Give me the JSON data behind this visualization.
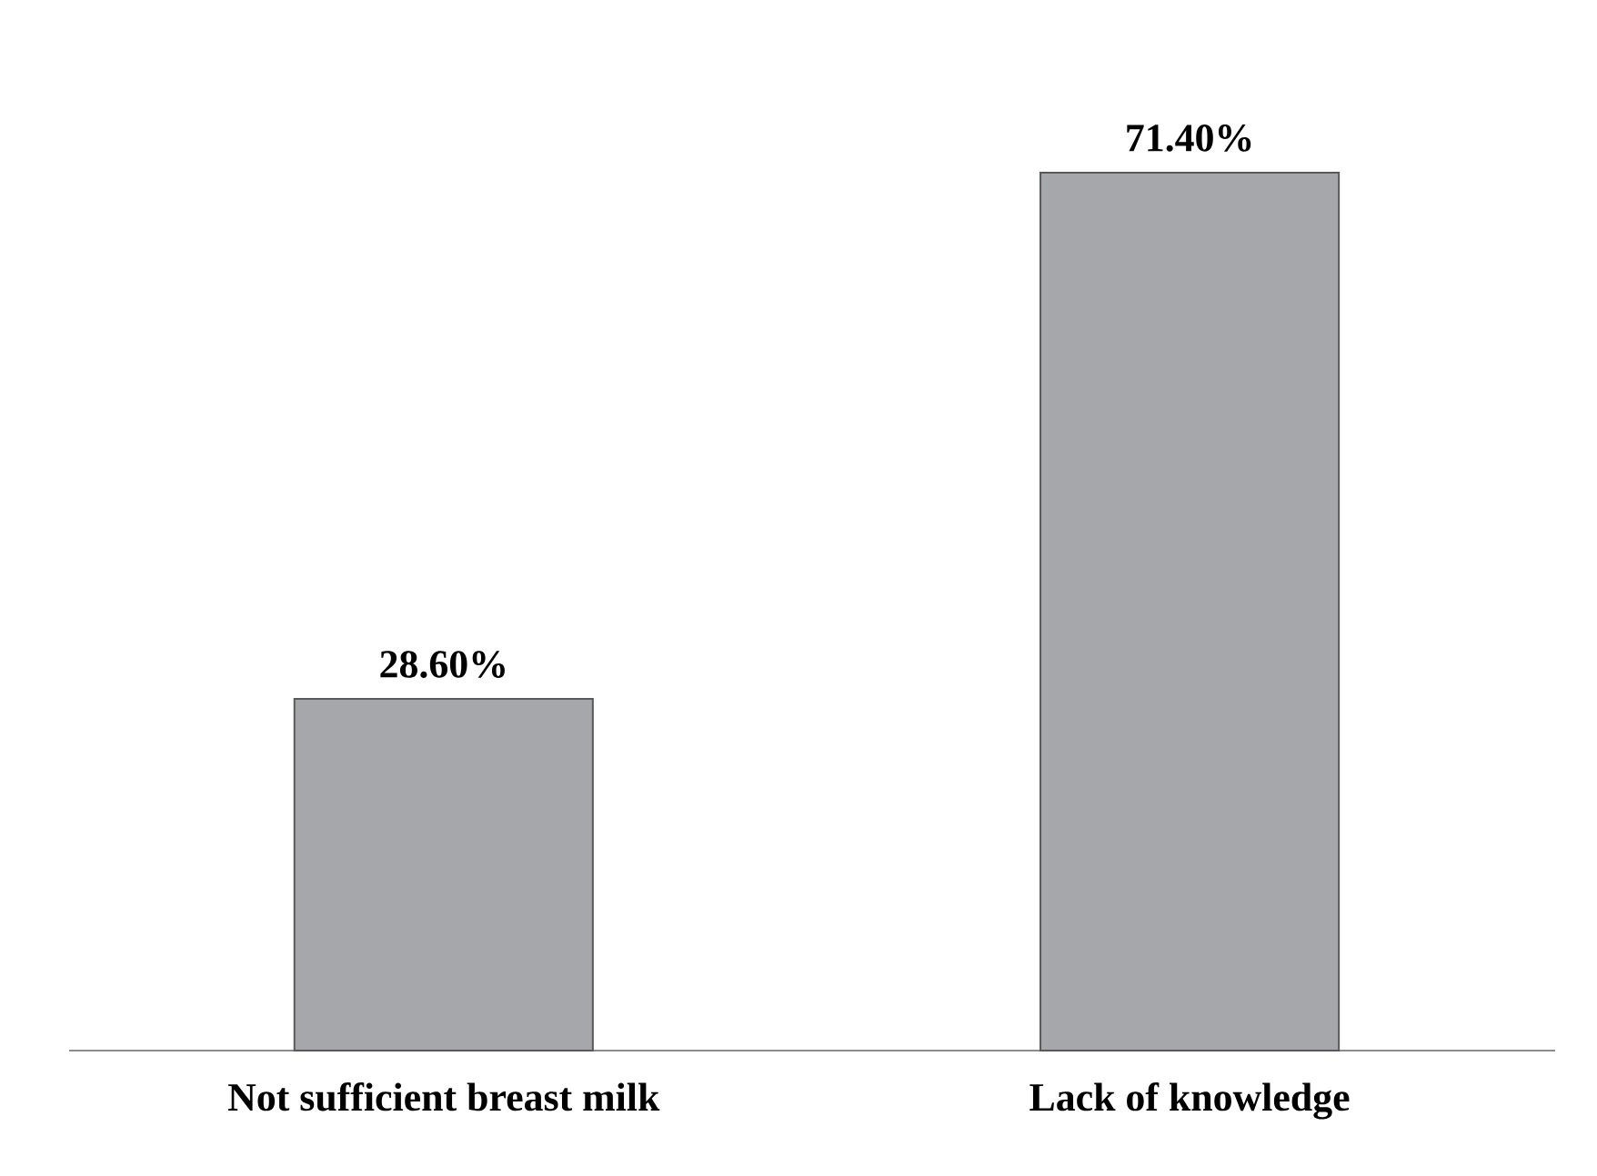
{
  "chart_data": {
    "type": "bar",
    "categories": [
      "Not sufficient breast milk",
      "Lack of knowledge"
    ],
    "values": [
      28.6,
      71.4
    ],
    "value_labels": [
      "28.60%",
      "71.40%"
    ],
    "color": "#a6a7ab"
  }
}
